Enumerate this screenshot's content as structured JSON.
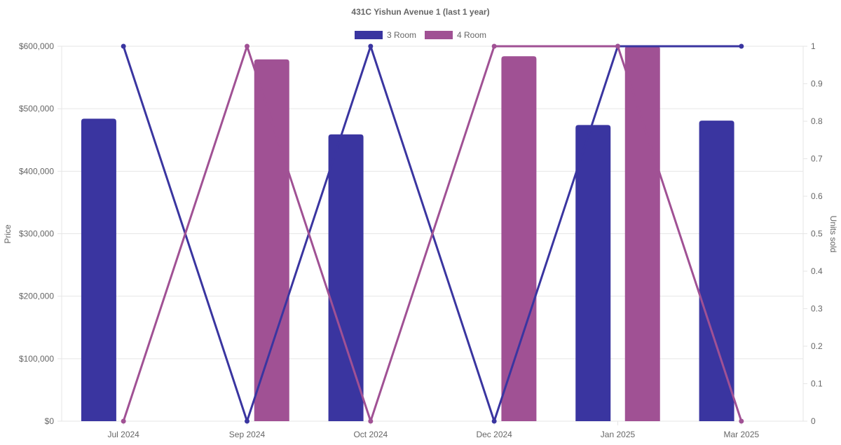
{
  "chart_data": {
    "type": "bar",
    "title": "431C Yishun Avenue 1 (last 1 year)",
    "categories": [
      "Jul 2024",
      "Sep 2024",
      "Oct 2024",
      "Dec 2024",
      "Jan 2025",
      "Mar 2025"
    ],
    "series": [
      {
        "name": "3 Room",
        "color": "#3a35a0",
        "price": [
          484000,
          null,
          459000,
          null,
          474000,
          481000
        ],
        "units_sold": [
          1,
          0,
          1,
          0,
          1,
          1
        ]
      },
      {
        "name": "4 Room",
        "color": "#a05194",
        "price": [
          null,
          579000,
          null,
          584000,
          600000,
          null
        ],
        "units_sold": [
          0,
          1,
          0,
          1,
          1,
          0
        ]
      }
    ],
    "y_left": {
      "label": "Price",
      "min": 0,
      "max": 600000,
      "ticks": [
        "$0",
        "$100,000",
        "$200,000",
        "$300,000",
        "$400,000",
        "$500,000",
        "$600,000"
      ]
    },
    "y_right": {
      "label": "Units sold",
      "min": 0,
      "max": 1,
      "ticks": [
        "0",
        "0.1",
        "0.2",
        "0.3",
        "0.4",
        "0.5",
        "0.6",
        "0.7",
        "0.8",
        "0.9",
        "1"
      ]
    },
    "legend_position": "top-center",
    "grid": true
  }
}
